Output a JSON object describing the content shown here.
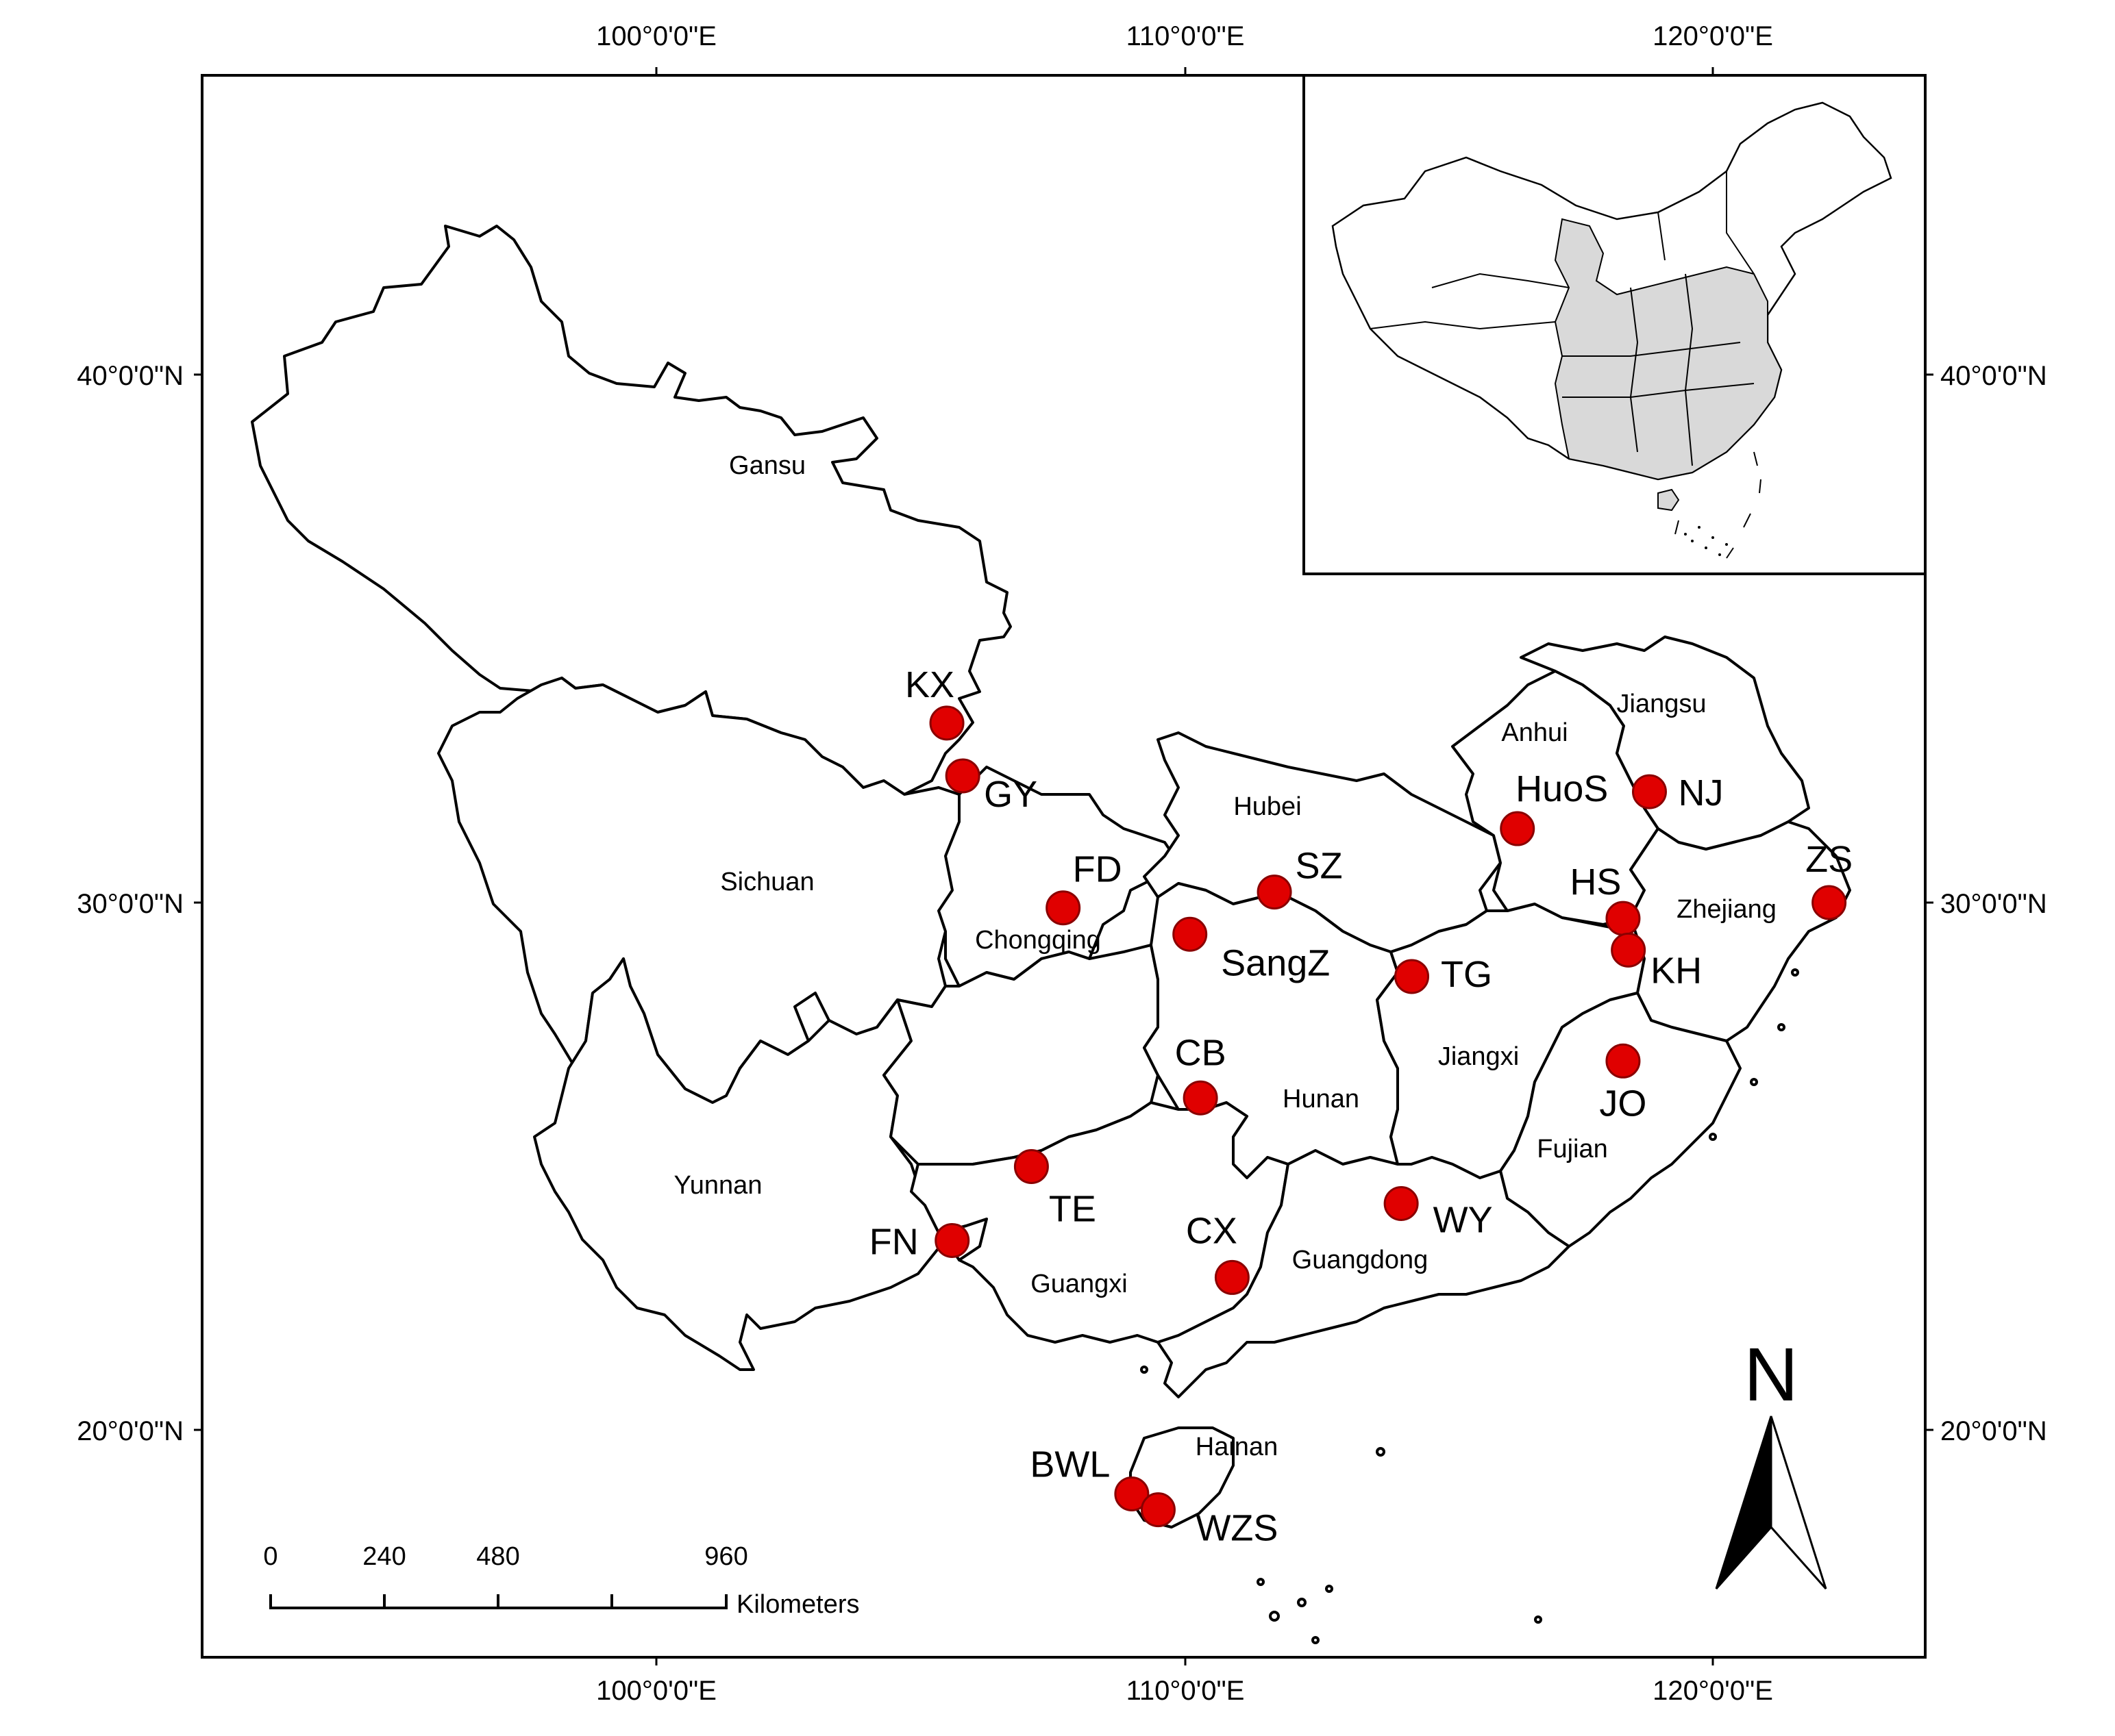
{
  "graticule": {
    "top_labels": [
      "100°0'0\"E",
      "110°0'0\"E",
      "120°0'0\"E"
    ],
    "bottom_labels": [
      "100°0'0\"E",
      "110°0'0\"E",
      "120°0'0\"E"
    ],
    "left_labels": [
      "40°0'0\"N",
      "30°0'0\"N",
      "20°0'0\"N"
    ],
    "right_labels": [
      "40°0'0\"N",
      "30°0'0\"N",
      "20°0'0\"N"
    ]
  },
  "provinces": [
    "Gansu",
    "Sichuan",
    "Chongqing",
    "Yunnan",
    "Hubei",
    "Hunan",
    "Jiangxi",
    "Anhui",
    "Jiangsu",
    "Zhejiang",
    "Fujian",
    "Guangxi",
    "Guangdong",
    "Hainan"
  ],
  "sites": [
    {
      "code": "KX",
      "lon": 105.5,
      "lat": 33.4
    },
    {
      "code": "GY",
      "lon": 105.8,
      "lat": 32.4
    },
    {
      "code": "FD",
      "lon": 107.7,
      "lat": 29.9
    },
    {
      "code": "SZ",
      "lon": 111.7,
      "lat": 30.2
    },
    {
      "code": "SangZ",
      "lon": 110.1,
      "lat": 29.4
    },
    {
      "code": "TG",
      "lon": 114.3,
      "lat": 28.6
    },
    {
      "code": "HuoS",
      "lon": 116.3,
      "lat": 31.4
    },
    {
      "code": "NJ",
      "lon": 118.8,
      "lat": 32.1
    },
    {
      "code": "HS",
      "lon": 118.3,
      "lat": 29.7
    },
    {
      "code": "KH",
      "lon": 118.4,
      "lat": 29.1
    },
    {
      "code": "ZS",
      "lon": 122.2,
      "lat": 30.0
    },
    {
      "code": "JO",
      "lon": 118.3,
      "lat": 27.0
    },
    {
      "code": "CB",
      "lon": 110.3,
      "lat": 26.3
    },
    {
      "code": "TE",
      "lon": 107.1,
      "lat": 25.0
    },
    {
      "code": "FN",
      "lon": 105.6,
      "lat": 23.6
    },
    {
      "code": "CX",
      "lon": 110.9,
      "lat": 22.9
    },
    {
      "code": "WY",
      "lon": 114.1,
      "lat": 24.3
    },
    {
      "code": "BWL",
      "lon": 109.0,
      "lat": 18.8
    },
    {
      "code": "WZS",
      "lon": 109.5,
      "lat": 18.5
    }
  ],
  "scale_bar": {
    "ticks": [
      "0",
      "240",
      "480",
      "960"
    ],
    "unit": "Kilometers"
  },
  "north_arrow": {
    "letter": "N"
  },
  "colors": {
    "site_fill": "#e00000",
    "site_stroke": "#8a0000",
    "inset_highlight": "#d9d9d9",
    "frame": "#000000"
  }
}
